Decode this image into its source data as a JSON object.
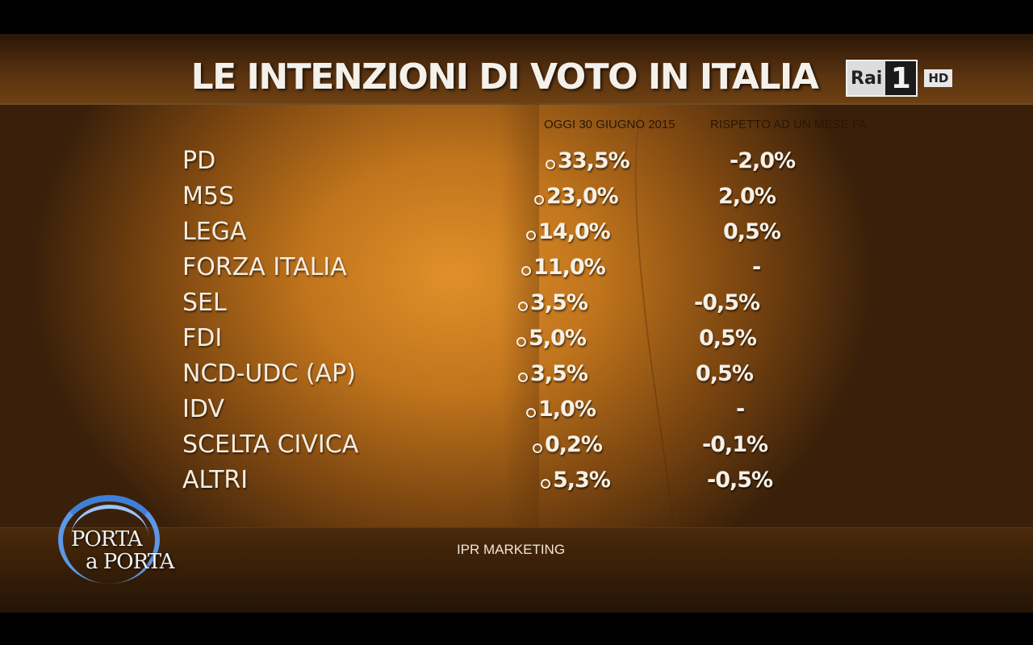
{
  "header": {
    "title": "LE INTENZIONI DI VOTO IN ITALIA",
    "channel": {
      "brand": "Rai",
      "number": "1",
      "quality": "HD"
    }
  },
  "columns": {
    "today": "OGGI 30 GIUGNO 2015",
    "delta": "RISPETTO AD UN MESE FA"
  },
  "rows": [
    {
      "party": "PD",
      "today": "33,5%",
      "delta": "-2,0%"
    },
    {
      "party": "M5S",
      "today": "23,0%",
      "delta": "2,0%"
    },
    {
      "party": "LEGA",
      "today": "14,0%",
      "delta": "0,5%"
    },
    {
      "party": "FORZA ITALIA",
      "today": "11,0%",
      "delta": "-"
    },
    {
      "party": "SEL",
      "today": "3,5%",
      "delta": "-0,5%"
    },
    {
      "party": "FDI",
      "today": "5,0%",
      "delta": "0,5%"
    },
    {
      "party": "NCD-UDC (AP)",
      "today": "3,5%",
      "delta": "0,5%"
    },
    {
      "party": "IDV",
      "today": "1,0%",
      "delta": "-"
    },
    {
      "party": "SCELTA CIVICA",
      "today": "0,2%",
      "delta": "-0,1%"
    },
    {
      "party": "ALTRI",
      "today": "5,3%",
      "delta": "-0,5%"
    }
  ],
  "footer": {
    "source": "IPR MARKETING",
    "show_logo": {
      "line1": "PORTA",
      "line2": "a PORTA"
    }
  },
  "colors": {
    "accent_orange": "#e0902a",
    "dark_brown": "#3a200a",
    "text_light": "#f4ede2",
    "logo_blue": "#3f7fd8"
  },
  "icons": {
    "bullet": "ring-bullet-icon"
  }
}
